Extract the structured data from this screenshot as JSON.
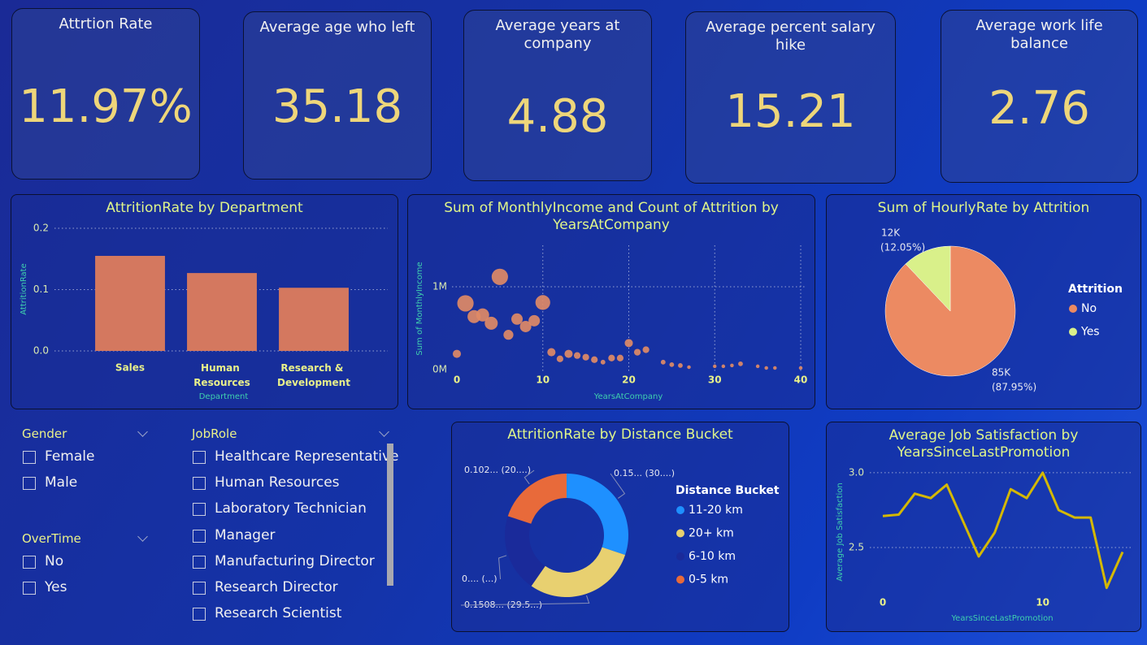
{
  "cards": [
    {
      "title": "Attrtion Rate",
      "value": "11.97%"
    },
    {
      "title": "Average age who left",
      "value": 35.18
    },
    {
      "title": "Average years at company",
      "value": 4.88
    },
    {
      "title": "Average percent salary hike",
      "value": 15.21
    },
    {
      "title": "Average work life balance",
      "value": 2.76
    }
  ],
  "slicers": [
    {
      "title": "Gender",
      "items": [
        "Female",
        "Male"
      ]
    },
    {
      "title": "OverTime",
      "items": [
        "No",
        "Yes"
      ]
    },
    {
      "title": "JobRole",
      "items": [
        "Healthcare Representative",
        "Human Resources",
        "Laboratory Technician",
        "Manager",
        "Manufacturing Director",
        "Research Director",
        "Research Scientist"
      ]
    }
  ],
  "chart_data": [
    {
      "type": "bar",
      "title": "AttritionRate by Department",
      "categories": [
        "Sales",
        "Human Resources",
        "Research & Development"
      ],
      "values": [
        0.155,
        0.127,
        0.103
      ],
      "color": "#d4785f",
      "ylim": [
        0,
        0.2
      ],
      "yticks": [
        {
          "value": 0,
          "label": "0.0"
        },
        0.1,
        0.2
      ],
      "xlabel": "Department",
      "ylabel": "AttritionRate",
      "grid": true
    },
    {
      "type": "scatter",
      "title": "Sum of MonthlyIncome and Count of Attrition by YearsAtCompany",
      "x": [
        0,
        1,
        2,
        3,
        4,
        5,
        6,
        7,
        8,
        9,
        10,
        11,
        12,
        13,
        14,
        15,
        16,
        17,
        18,
        19,
        20,
        21,
        22,
        24,
        25,
        26,
        27,
        30,
        31,
        32,
        33,
        35,
        36,
        37,
        40
      ],
      "values": [
        190000,
        800000,
        640000,
        660000,
        560000,
        1120000,
        420000,
        610000,
        520000,
        590000,
        810000,
        210000,
        130000,
        190000,
        170000,
        150000,
        120000,
        90000,
        140000,
        140000,
        320000,
        210000,
        240000,
        90000,
        60000,
        50000,
        30000,
        40000,
        40000,
        50000,
        70000,
        40000,
        20000,
        20000,
        20000
      ],
      "sizes": [
        15,
        60,
        38,
        38,
        38,
        60,
        22,
        29,
        29,
        29,
        49,
        15,
        10,
        15,
        10,
        10,
        10,
        5,
        10,
        10,
        15,
        10,
        10,
        5,
        5,
        5,
        3,
        3,
        3,
        3,
        5,
        3,
        3,
        3,
        3
      ],
      "color": "#e08a66",
      "xlim": [
        0,
        40
      ],
      "ylim": [
        0,
        1500000
      ],
      "xticks": [
        0,
        10,
        20,
        30,
        40
      ],
      "yticks": [
        {
          "value": 0,
          "label": "0M"
        },
        {
          "value": 1000000,
          "label": "1M"
        }
      ],
      "xlabel": "YearsAtCompany",
      "ylabel": "Sum of MonthlyIncome",
      "grid": true
    },
    {
      "type": "pie",
      "title": "Sum of HourlyRate by Attrition",
      "legend_title": "Attrition",
      "categories": [
        "No",
        "Yes"
      ],
      "values": [
        85000,
        11646
      ],
      "value_labels": [
        "85K",
        "12K"
      ],
      "percent_labels": [
        "(87.95%)",
        "(12.05%)"
      ],
      "colors": [
        "#ec8a62",
        "#d9f08a"
      ],
      "legend": "right"
    },
    {
      "type": "donut",
      "title": "AttritionRate by Distance Bucket",
      "legend_title": "Distance Bucket",
      "categories": [
        "11-20 km",
        "20+ km",
        "6-10 km",
        "0-5 km"
      ],
      "values": [
        0.154,
        0.1508,
        0.104,
        0.102
      ],
      "value_labels": [
        "0.15... (30....)",
        "0.1508... (29.5...)",
        "0.... (...)",
        "0.102... (20....)"
      ],
      "colors": [
        "#1e90ff",
        "#e8d070",
        "#1a2a9a",
        "#e86a3a"
      ],
      "legend": "right"
    },
    {
      "type": "line",
      "title": "Average Job Satisfaction by YearsSinceLastPromotion",
      "x": [
        0,
        1,
        2,
        3,
        4,
        5,
        6,
        7,
        8,
        9,
        10,
        11,
        12,
        13,
        14,
        15
      ],
      "values": [
        2.71,
        2.72,
        2.86,
        2.83,
        2.92,
        2.68,
        2.44,
        2.6,
        2.89,
        2.83,
        3.0,
        2.75,
        2.7,
        2.7,
        2.23,
        2.47
      ],
      "color": "#d4b800",
      "xlim": [
        0,
        15
      ],
      "ylim": [
        2.15,
        3.07
      ],
      "xticks": [
        0,
        10
      ],
      "yticks": [
        2.5,
        {
          "value": 3,
          "label": "3.0"
        }
      ],
      "xlabel": "YearsSinceLastPromotion",
      "ylabel": "Average Job Satisfaction",
      "grid": true
    }
  ]
}
